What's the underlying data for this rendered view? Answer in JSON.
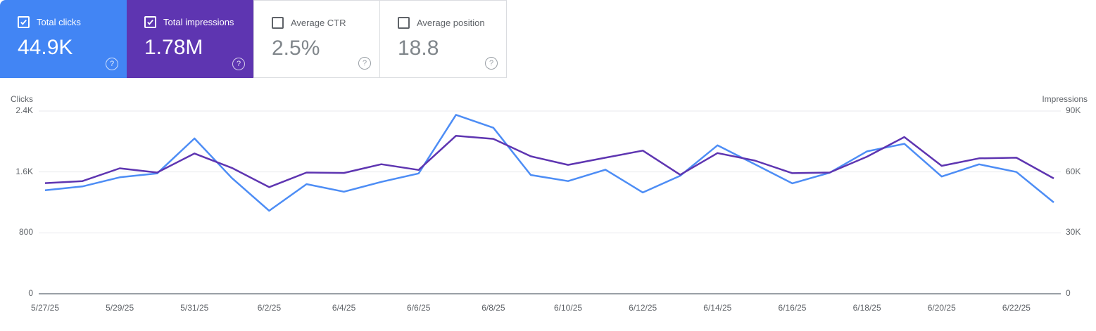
{
  "theme": {
    "clicks_accent": "#4285f4",
    "impressions_accent": "#5e35b1",
    "clicks_line": "#4d8df5",
    "impressions_line": "#5e35b1",
    "card_border": "#dadce0",
    "grid_color": "#e8eaed",
    "axis_line_color": "#9aa0a6",
    "label_color": "#5f6368"
  },
  "cards": [
    {
      "label": "Total clicks",
      "value": "44.9K",
      "selected": true,
      "bg": "#4285f4",
      "help_icon": "?"
    },
    {
      "label": "Total impressions",
      "value": "1.78M",
      "selected": true,
      "bg": "#5e35b1",
      "help_icon": "?"
    },
    {
      "label": "Average CTR",
      "value": "2.5%",
      "selected": false,
      "bg": "#ffffff",
      "help_icon": "?"
    },
    {
      "label": "Average position",
      "value": "18.8",
      "selected": false,
      "bg": "#ffffff",
      "help_icon": "?"
    }
  ],
  "chart_data": {
    "type": "line",
    "x": [
      "5/27/25",
      "5/28/25",
      "5/29/25",
      "5/30/25",
      "5/31/25",
      "6/1/25",
      "6/2/25",
      "6/3/25",
      "6/4/25",
      "6/5/25",
      "6/6/25",
      "6/7/25",
      "6/8/25",
      "6/9/25",
      "6/10/25",
      "6/11/25",
      "6/12/25",
      "6/13/25",
      "6/14/25",
      "6/15/25",
      "6/16/25",
      "6/17/25",
      "6/18/25",
      "6/19/25",
      "6/20/25",
      "6/21/25",
      "6/22/25",
      "6/23/25"
    ],
    "x_tick_labels": [
      "5/27/25",
      "5/29/25",
      "5/31/25",
      "6/2/25",
      "6/4/25",
      "6/6/25",
      "6/8/25",
      "6/10/25",
      "6/12/25",
      "6/14/25",
      "6/16/25",
      "6/18/25",
      "6/20/25",
      "6/22/25"
    ],
    "series": [
      {
        "name": "Clicks",
        "axis": "left",
        "color": "#4d8df5",
        "values": [
          1360,
          1410,
          1530,
          1580,
          2040,
          1520,
          1090,
          1440,
          1340,
          1470,
          1580,
          2350,
          2180,
          1560,
          1480,
          1630,
          1330,
          1550,
          1950,
          1700,
          1450,
          1590,
          1870,
          1970,
          1540,
          1700,
          1600,
          1200
        ]
      },
      {
        "name": "Impressions",
        "axis": "right",
        "color": "#5e35b1",
        "values": [
          54500,
          55500,
          61800,
          59700,
          69100,
          62000,
          52500,
          59700,
          59500,
          63800,
          61000,
          77800,
          76300,
          67700,
          63500,
          67000,
          70500,
          58600,
          69300,
          65600,
          59400,
          59700,
          67500,
          77200,
          63000,
          66700,
          67000,
          56800
        ]
      }
    ],
    "left_axis": {
      "label": "Clicks",
      "tick_labels": [
        "2.4K",
        "1.6K",
        "800",
        "0"
      ],
      "tick_values": [
        2400,
        1600,
        800,
        0
      ],
      "min": 0,
      "max": 2400
    },
    "right_axis": {
      "label": "Impressions",
      "tick_labels": [
        "90K",
        "60K",
        "30K",
        "0"
      ],
      "tick_values": [
        90000,
        60000,
        30000,
        0
      ],
      "min": 0,
      "max": 90000
    },
    "grid": true,
    "legend_position": "none"
  }
}
